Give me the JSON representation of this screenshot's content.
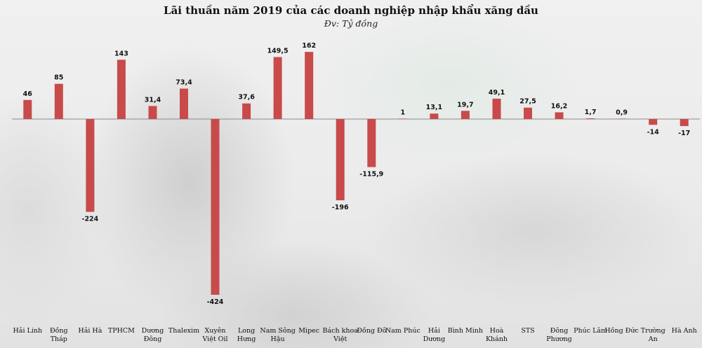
{
  "chart_data": {
    "type": "bar",
    "title": "Lãi thuần năm 2019 của các doanh nghiệp nhập khẩu xăng dầu",
    "subtitle": "Đv: Tỷ đồng",
    "xlabel": "",
    "ylabel": "",
    "grid": false,
    "ylim": [
      -424,
      162
    ],
    "bar_color": "#c84a4a",
    "categories": [
      [
        "Hải Linh"
      ],
      [
        "Đồng",
        "Tháp"
      ],
      [
        "Hải Hà"
      ],
      [
        "TPHCM"
      ],
      [
        "Dương",
        "Đông"
      ],
      [
        "Thalexim"
      ],
      [
        "Xuyên",
        "Việt Oil"
      ],
      [
        "Long",
        "Hưng"
      ],
      [
        "Nam Sông",
        "Hậu"
      ],
      [
        "Mipec"
      ],
      [
        "Bách khoa",
        "Việt"
      ],
      [
        "Đồng Đô"
      ],
      [
        "Nam Phúc"
      ],
      [
        "Hải",
        "Dương"
      ],
      [
        "Bình Minh"
      ],
      [
        "Hoà",
        "Khánh"
      ],
      [
        "STS"
      ],
      [
        "Đông",
        "Phương"
      ],
      [
        "Phúc Lâm"
      ],
      [
        "Hồng Đức"
      ],
      [
        "Trường",
        "An"
      ],
      [
        "Hà Anh"
      ]
    ],
    "values": [
      46,
      85,
      -224,
      143,
      31.4,
      73.4,
      -424,
      37.6,
      149.5,
      162,
      -196,
      -115.9,
      1,
      13.1,
      19.7,
      49.1,
      27.5,
      16.2,
      1.7,
      0.9,
      -14,
      -17
    ],
    "value_labels": [
      "46",
      "85",
      "-224",
      "143",
      "31,4",
      "73,4",
      "-424",
      "37,6",
      "149,5",
      "162",
      "-196",
      "-115,9",
      "1",
      "13,1",
      "19,7",
      "49,1",
      "27,5",
      "16,2",
      "1,7",
      "0,9",
      "-14",
      "-17"
    ]
  }
}
